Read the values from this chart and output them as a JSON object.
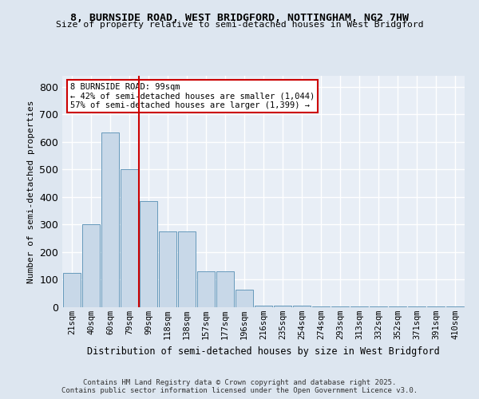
{
  "title1": "8, BURNSIDE ROAD, WEST BRIDGFORD, NOTTINGHAM, NG2 7HW",
  "title2": "Size of property relative to semi-detached houses in West Bridgford",
  "xlabel": "Distribution of semi-detached houses by size in West Bridgford",
  "ylabel": "Number of semi-detached properties",
  "bins": [
    "21sqm",
    "40sqm",
    "60sqm",
    "79sqm",
    "99sqm",
    "118sqm",
    "138sqm",
    "157sqm",
    "177sqm",
    "196sqm",
    "216sqm",
    "235sqm",
    "254sqm",
    "274sqm",
    "293sqm",
    "313sqm",
    "332sqm",
    "352sqm",
    "371sqm",
    "391sqm",
    "410sqm"
  ],
  "values": [
    125,
    300,
    635,
    500,
    385,
    275,
    275,
    130,
    130,
    65,
    5,
    5,
    5,
    2,
    2,
    2,
    2,
    2,
    2,
    2,
    2
  ],
  "bar_color": "#c8d8e8",
  "bar_edge_color": "#6699bb",
  "vline_idx": 4,
  "vline_color": "#cc0000",
  "annotation_title": "8 BURNSIDE ROAD: 99sqm",
  "annotation_line1": "← 42% of semi-detached houses are smaller (1,044)",
  "annotation_line2": "57% of semi-detached houses are larger (1,399) →",
  "annotation_box_color": "#ffffff",
  "annotation_box_edge": "#cc0000",
  "ylim": [
    0,
    840
  ],
  "yticks": [
    0,
    100,
    200,
    300,
    400,
    500,
    600,
    700,
    800
  ],
  "bg_color": "#dde6f0",
  "plot_bg_color": "#e8eef6",
  "grid_color": "#ffffff",
  "footer1": "Contains HM Land Registry data © Crown copyright and database right 2025.",
  "footer2": "Contains public sector information licensed under the Open Government Licence v3.0."
}
